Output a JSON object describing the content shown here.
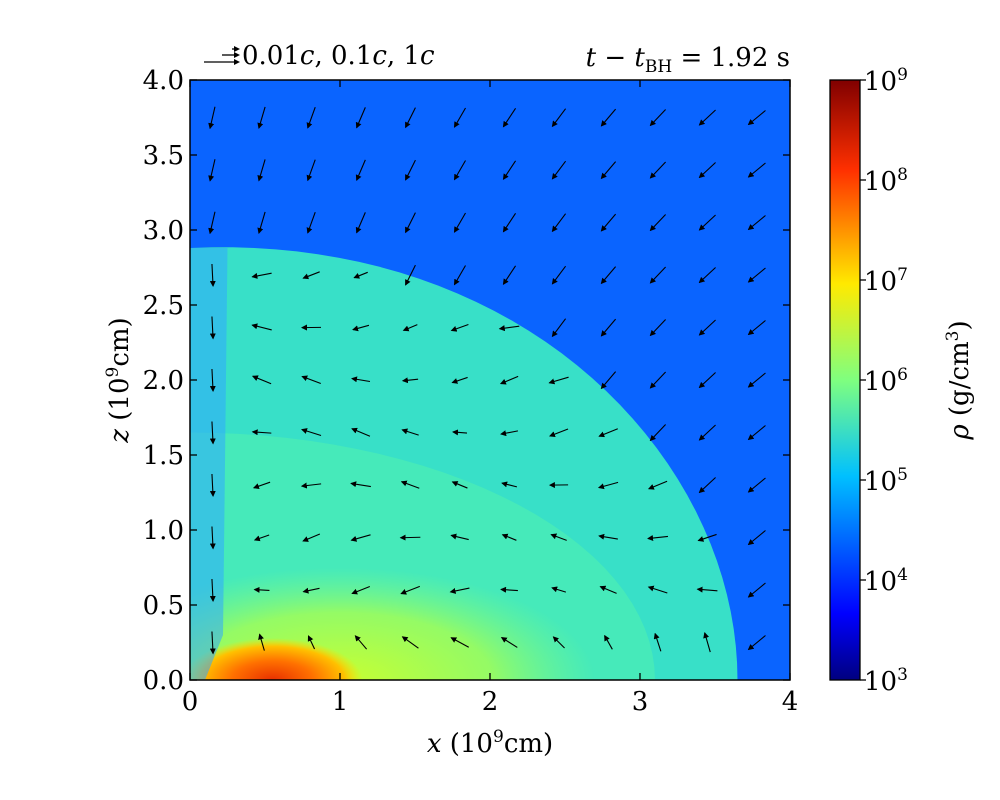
{
  "chart_data": {
    "type": "heatmap",
    "xlim": [
      0,
      4
    ],
    "ylim": [
      0,
      4
    ],
    "x_ticks": [
      {
        "value": 0,
        "label": "0"
      },
      {
        "value": 1,
        "label": "1"
      },
      {
        "value": 2,
        "label": "2"
      },
      {
        "value": 3,
        "label": "3"
      },
      {
        "value": 4,
        "label": "4"
      }
    ],
    "y_ticks": [
      {
        "value": 0.0,
        "label": "0.0"
      },
      {
        "value": 0.5,
        "label": "0.5"
      },
      {
        "value": 1.0,
        "label": "1.0"
      },
      {
        "value": 1.5,
        "label": "1.5"
      },
      {
        "value": 2.0,
        "label": "2.0"
      },
      {
        "value": 2.5,
        "label": "2.5"
      },
      {
        "value": 3.0,
        "label": "3.0"
      },
      {
        "value": 3.5,
        "label": "3.5"
      },
      {
        "value": 4.0,
        "label": "4.0"
      }
    ],
    "xlabel": {
      "var": "x",
      "rest": " (10",
      "exp": "9",
      "unit": "cm)"
    },
    "ylabel": {
      "var": "z",
      "rest": " (10",
      "exp": "9",
      "unit": "cm)"
    },
    "time_label": {
      "t": "t",
      "minus": " − ",
      "tbh": "t",
      "sub": "BH",
      "value": " = 1.92 s"
    },
    "legend": {
      "text_a": " 0.01",
      "c1": "c",
      "text_b": ", 0.1",
      "c2": "c",
      "text_c": ", 1",
      "c3": "c"
    },
    "colorbar": {
      "label_var": "ρ",
      "label_rest": " (g/cm",
      "label_exp": "3",
      "label_close": ")",
      "scale": "log",
      "range": [
        1000,
        1000000000
      ],
      "ticks": [
        {
          "base": "10",
          "exp": "9"
        },
        {
          "base": "10",
          "exp": "8"
        },
        {
          "base": "10",
          "exp": "7"
        },
        {
          "base": "10",
          "exp": "6"
        },
        {
          "base": "10",
          "exp": "5"
        },
        {
          "base": "10",
          "exp": "4"
        },
        {
          "base": "10",
          "exp": "3"
        }
      ]
    },
    "density_regions": {
      "ambient_log_rho": 4.2,
      "shocked_log_rho": 5.4,
      "shock_front_z_at_x0": 2.88,
      "shock_front_x_at_z0": 3.65,
      "inner_yellow_log_rho": 6.5,
      "core_peak_log_rho": 8.0
    },
    "velocity_field_rows_z": [
      3.75,
      3.4,
      3.05,
      2.7,
      2.35,
      2.0,
      1.65,
      1.3,
      0.95,
      0.6,
      0.25
    ],
    "velocity_field_cols_x": [
      0.15,
      0.48,
      0.81,
      1.14,
      1.47,
      1.8,
      2.13,
      2.46,
      2.79,
      3.12,
      3.45,
      3.78
    ]
  }
}
